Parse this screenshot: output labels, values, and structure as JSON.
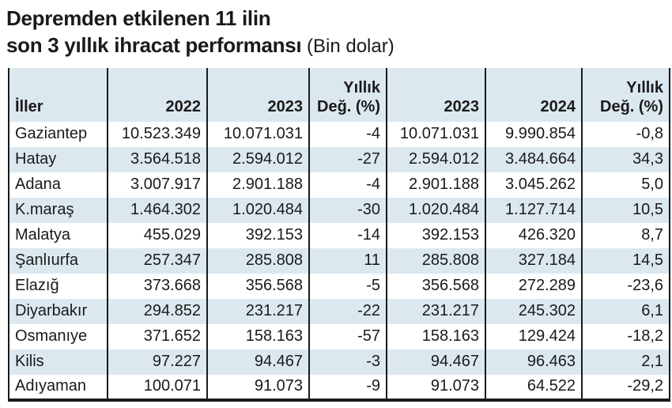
{
  "title": {
    "line1": "Depremden etkilenen 11 ilin",
    "line2_bold": "son 3 yıllık ihracat performansı",
    "line2_note": " (Bin dolar)"
  },
  "colors": {
    "stripe_blue": "#dce8f0",
    "border_black": "#1a1a1a",
    "text": "#1a1a1a",
    "background": "#ffffff"
  },
  "chart_data": {
    "type": "table",
    "title": "Depremden etkilenen 11 ilin son 3 yıllık ihracat performansı",
    "unit": "Bin dolar",
    "columns": [
      "İller",
      "2022",
      "2023",
      "Yıllık Değ. (%)",
      "2023",
      "2024",
      "Yıllık Değ. (%)"
    ],
    "rows": [
      [
        "Gaziantep",
        "10.523.349",
        "10.071.031",
        "-4",
        "10.071.031",
        "9.990.854",
        "-0,8"
      ],
      [
        "Hatay",
        "3.564.518",
        "2.594.012",
        "-27",
        "2.594.012",
        "3.484.664",
        "34,3"
      ],
      [
        "Adana",
        "3.007.917",
        "2.901.188",
        "-4",
        "2.901.188",
        "3.045.262",
        "5,0"
      ],
      [
        "K.maraş",
        "1.464.302",
        "1.020.484",
        "-30",
        "1.020.484",
        "1.127.714",
        "10,5"
      ],
      [
        "Malatya",
        "455.029",
        "392.153",
        "-14",
        "392.153",
        "426.320",
        "8,7"
      ],
      [
        "Şanlıurfa",
        "257.347",
        "285.808",
        "11",
        "285.808",
        "327.184",
        "14,5"
      ],
      [
        "Elazığ",
        "373.668",
        "356.568",
        "-5",
        "356.568",
        "272.289",
        "-23,6"
      ],
      [
        "Diyarbakır",
        "294.852",
        "231.217",
        "-22",
        "231.217",
        "245.302",
        "6,1"
      ],
      [
        "Osmanıye",
        "371.652",
        "158.163",
        "-57",
        "158.163",
        "129.424",
        "-18,2"
      ],
      [
        "Kilis",
        "97.227",
        "94.467",
        "-3",
        "94.467",
        "96.463",
        "2,1"
      ],
      [
        "Adıyaman",
        "100.071",
        "91.073",
        "-9",
        "91.073",
        "64.522",
        "-29,2"
      ]
    ]
  },
  "header": {
    "col_iller": "İller",
    "col_2022": "2022",
    "col_2023": "2023",
    "col_deg_line1": "Yıllık",
    "col_deg_line2": "Değ. (%)",
    "col_2023b": "2023",
    "col_2024": "2024",
    "col_deg2_line1": "Yıllık",
    "col_deg2_line2": "Değ. (%)"
  }
}
